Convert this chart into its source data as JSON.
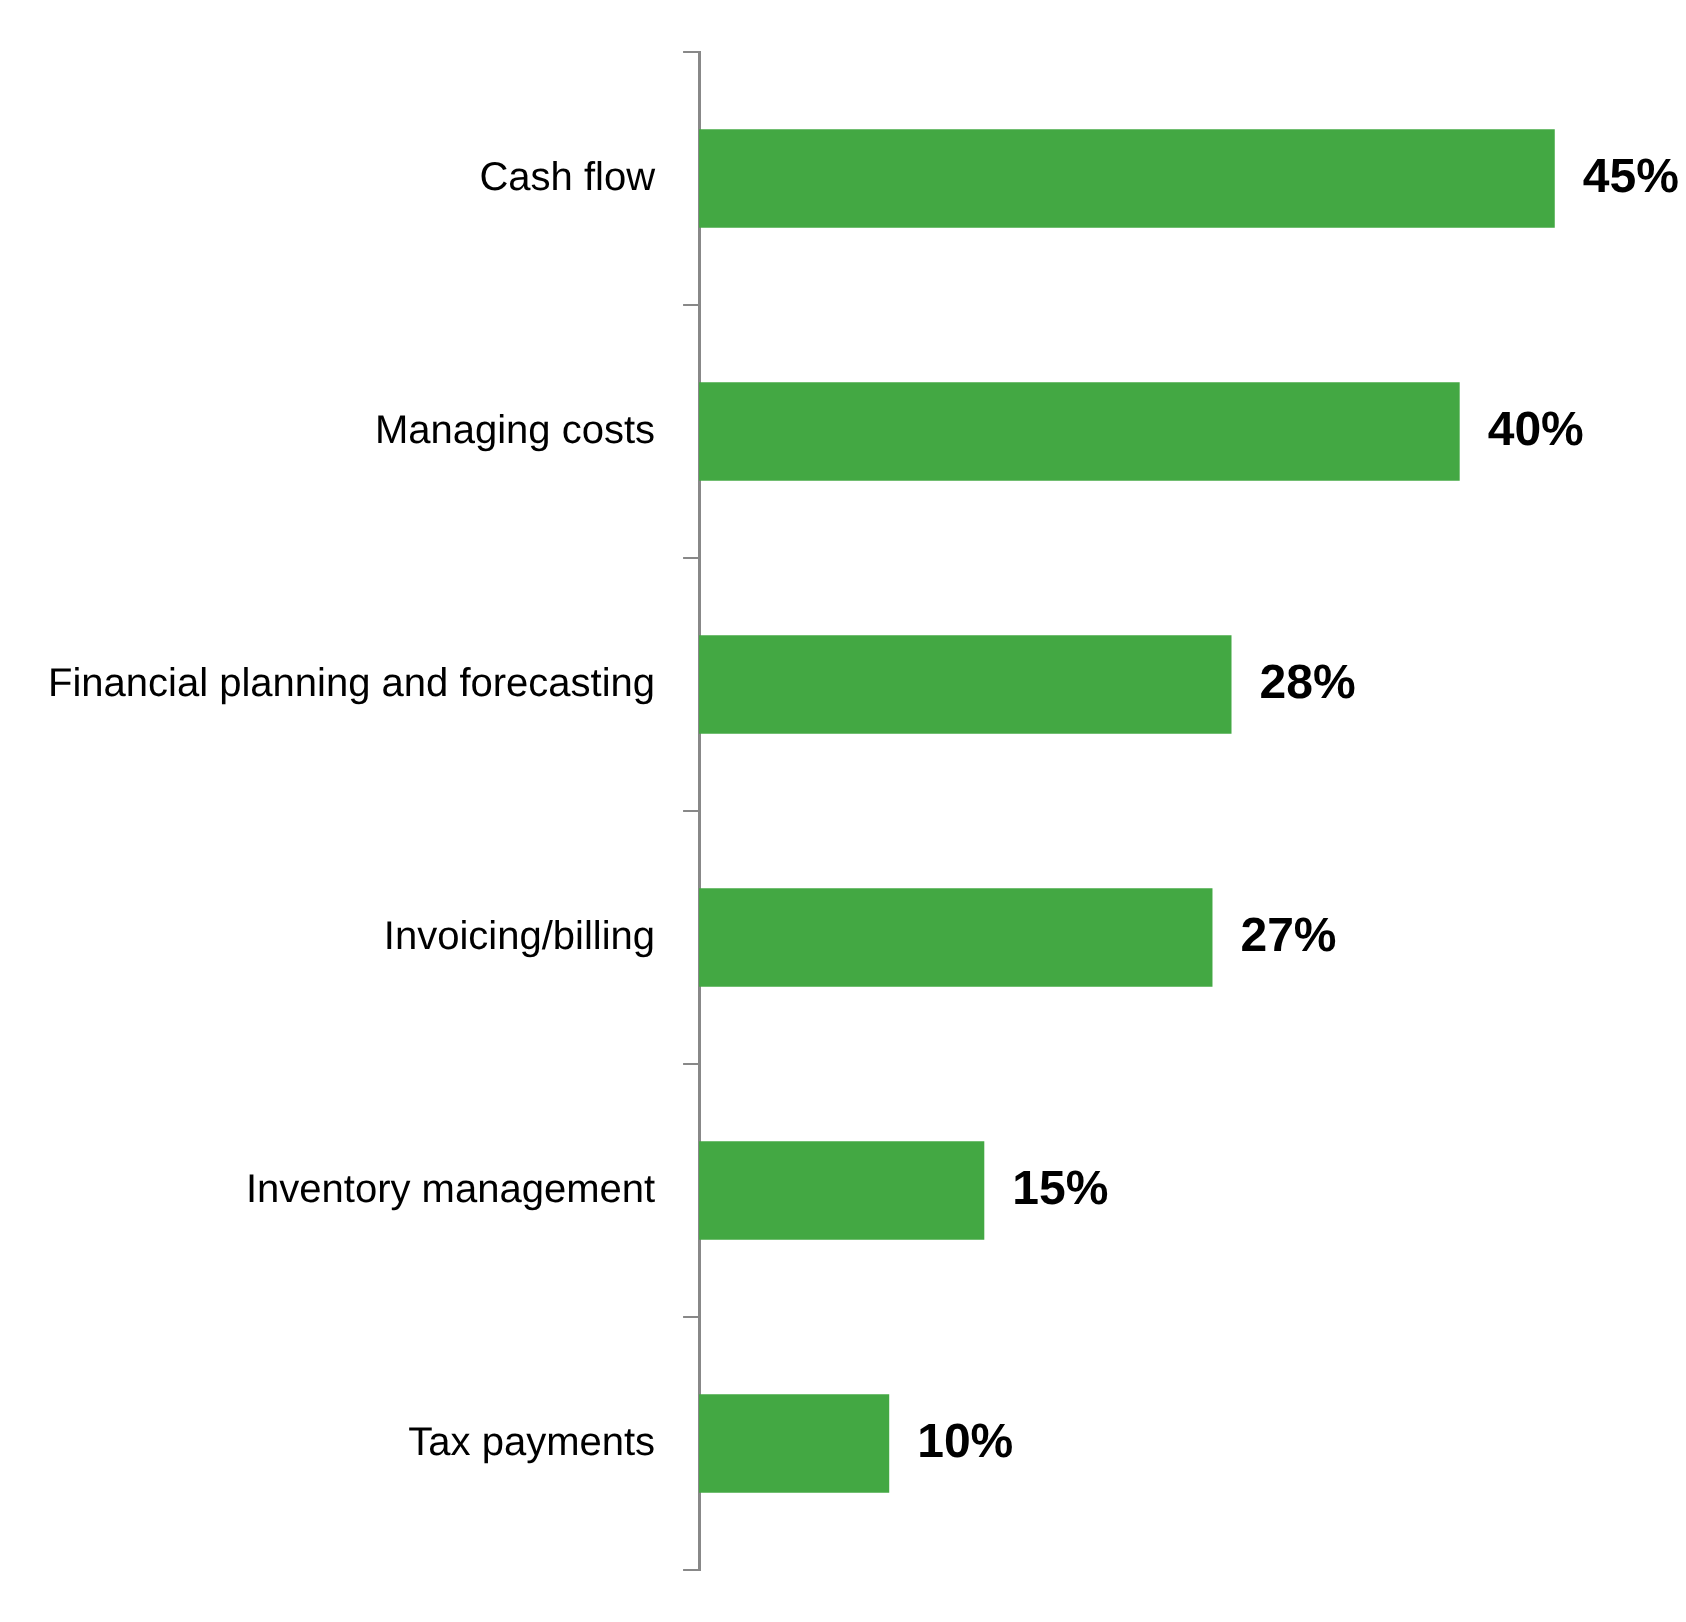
{
  "chart_data": {
    "type": "bar",
    "orientation": "horizontal",
    "categories": [
      "Cash flow",
      "Managing costs",
      "Financial planning and forecasting",
      "Invoicing/billing",
      "Inventory management",
      "Tax payments"
    ],
    "values": [
      45,
      40,
      28,
      27,
      15,
      10
    ],
    "color": "#43a843",
    "data_labels": true,
    "value_labels": [
      "45%",
      "40%",
      "28%",
      "27%",
      "15%",
      "10%"
    ],
    "grid": false,
    "legend": false
  }
}
